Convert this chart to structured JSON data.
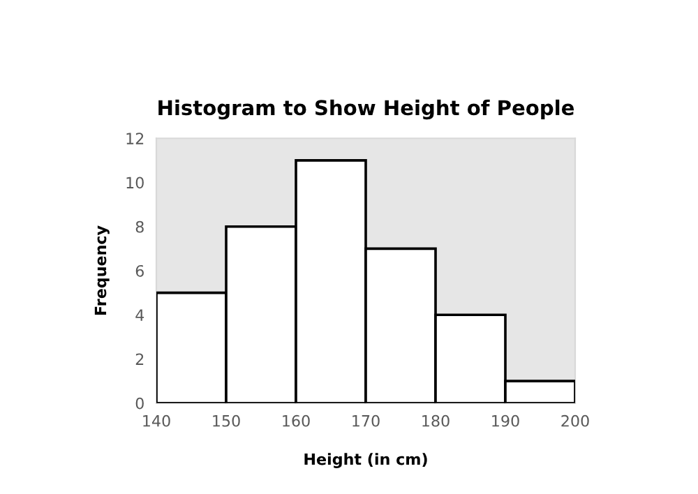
{
  "chart_data": {
    "type": "histogram",
    "title": "Histogram to Show Height of People",
    "xlabel": "Height (in cm)",
    "ylabel": "Frequency",
    "bins": [
      140,
      150,
      160,
      170,
      180,
      190,
      200
    ],
    "values": [
      5,
      8,
      11,
      7,
      4,
      1
    ],
    "color": "#ffffff",
    "xlim": [
      140,
      200
    ],
    "xticks": [
      140,
      150,
      160,
      170,
      180,
      190,
      200
    ],
    "ylim": [
      0,
      12
    ],
    "yticks": [
      0,
      2,
      4,
      6,
      8,
      10,
      12
    ],
    "grid": false,
    "legend": false
  }
}
